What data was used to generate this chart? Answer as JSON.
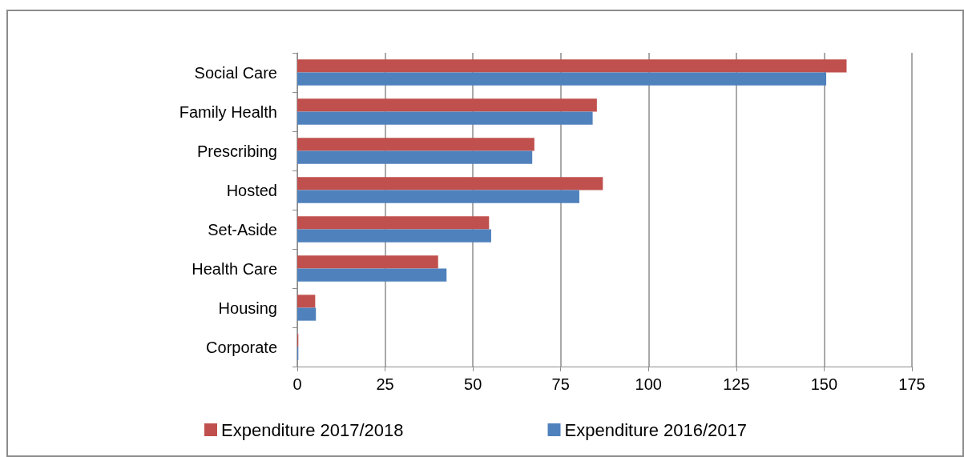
{
  "chart_data": {
    "type": "bar",
    "orientation": "horizontal",
    "categories": [
      "Social Care",
      "Family Health",
      "Prescribing",
      "Hosted",
      "Set-Aside",
      "Health Care",
      "Housing",
      "Corporate"
    ],
    "series": [
      {
        "name": "Expenditure 2017/2018",
        "color": "#c0504d",
        "values": [
          156.4,
          85.3,
          67.5,
          87.0,
          54.6,
          40.1,
          5.1,
          0.3
        ]
      },
      {
        "name": "Expenditure 2016/2017",
        "color": "#4f81bd",
        "values": [
          150.6,
          84.1,
          66.9,
          80.3,
          55.2,
          42.5,
          5.3,
          0.3
        ]
      }
    ],
    "xlim": [
      0,
      175
    ],
    "xticks": [
      0,
      25,
      50,
      75,
      100,
      125,
      150,
      175
    ],
    "grid": "x",
    "legend": "bottom"
  }
}
